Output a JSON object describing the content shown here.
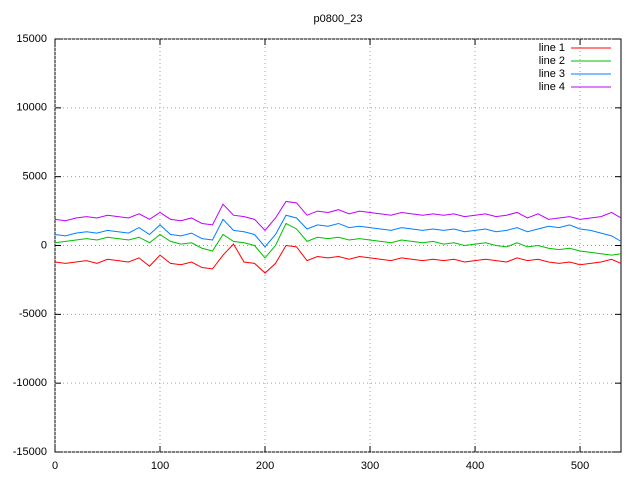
{
  "chart_data": {
    "type": "line",
    "title": "p0800_23",
    "x": [
      0,
      10,
      20,
      30,
      40,
      50,
      60,
      70,
      80,
      90,
      100,
      110,
      120,
      130,
      140,
      150,
      160,
      170,
      180,
      190,
      200,
      210,
      220,
      230,
      240,
      250,
      260,
      270,
      280,
      290,
      300,
      310,
      320,
      330,
      340,
      350,
      360,
      370,
      380,
      390,
      400,
      410,
      420,
      430,
      440,
      450,
      460,
      470,
      480,
      490,
      500,
      510,
      520,
      530,
      539
    ],
    "series": [
      {
        "name": "line 1",
        "color": "#ff0000",
        "values": [
          -1200,
          -1300,
          -1200,
          -1100,
          -1300,
          -1000,
          -1100,
          -1200,
          -900,
          -1500,
          -700,
          -1300,
          -1400,
          -1200,
          -1600,
          -1700,
          -700,
          100,
          -1200,
          -1300,
          -2000,
          -1300,
          0,
          -100,
          -1100,
          -800,
          -900,
          -800,
          -1000,
          -800,
          -900,
          -1000,
          -1100,
          -900,
          -1000,
          -1100,
          -1000,
          -1100,
          -1000,
          -1200,
          -1100,
          -1000,
          -1100,
          -1200,
          -900,
          -1100,
          -1000,
          -1200,
          -1300,
          -1200,
          -1400,
          -1300,
          -1200,
          -1000,
          -1300
        ]
      },
      {
        "name": "line 2",
        "color": "#00c000",
        "values": [
          200,
          300,
          400,
          500,
          400,
          600,
          500,
          400,
          600,
          200,
          800,
          300,
          100,
          200,
          -200,
          -400,
          800,
          300,
          200,
          0,
          -900,
          0,
          1600,
          1200,
          300,
          600,
          500,
          600,
          400,
          500,
          400,
          300,
          200,
          400,
          300,
          200,
          300,
          100,
          200,
          0,
          100,
          200,
          0,
          -100,
          200,
          -100,
          0,
          -200,
          -300,
          -200,
          -400,
          -500,
          -600,
          -700,
          -600
        ]
      },
      {
        "name": "line 3",
        "color": "#0080ff",
        "values": [
          800,
          700,
          900,
          1000,
          900,
          1100,
          1000,
          900,
          1300,
          800,
          1500,
          800,
          700,
          900,
          500,
          400,
          1900,
          1100,
          1000,
          800,
          -100,
          800,
          2200,
          2000,
          1200,
          1500,
          1400,
          1600,
          1300,
          1400,
          1300,
          1200,
          1100,
          1300,
          1200,
          1100,
          1200,
          1100,
          1200,
          1000,
          1100,
          1200,
          1000,
          1100,
          1300,
          1000,
          1200,
          1400,
          1300,
          1500,
          1200,
          1100,
          900,
          700,
          300
        ]
      },
      {
        "name": "line 4",
        "color": "#c000ff",
        "values": [
          1900,
          1800,
          2000,
          2100,
          2000,
          2200,
          2100,
          2000,
          2300,
          1900,
          2400,
          1900,
          1800,
          2000,
          1600,
          1500,
          3000,
          2200,
          2100,
          1900,
          1100,
          2000,
          3200,
          3100,
          2200,
          2500,
          2400,
          2600,
          2300,
          2500,
          2400,
          2300,
          2200,
          2400,
          2300,
          2200,
          2300,
          2200,
          2300,
          2100,
          2200,
          2300,
          2100,
          2200,
          2400,
          2000,
          2300,
          1900,
          2000,
          2100,
          1900,
          2000,
          2100,
          2400,
          2000
        ]
      }
    ],
    "xlim": [
      0,
      539
    ],
    "xticks": [
      0,
      100,
      200,
      300,
      400,
      500
    ],
    "ylim": [
      -15000,
      15000
    ],
    "yticks": [
      -15000,
      -10000,
      -5000,
      0,
      5000,
      10000,
      15000
    ],
    "grid": true,
    "legend": "top-right"
  }
}
